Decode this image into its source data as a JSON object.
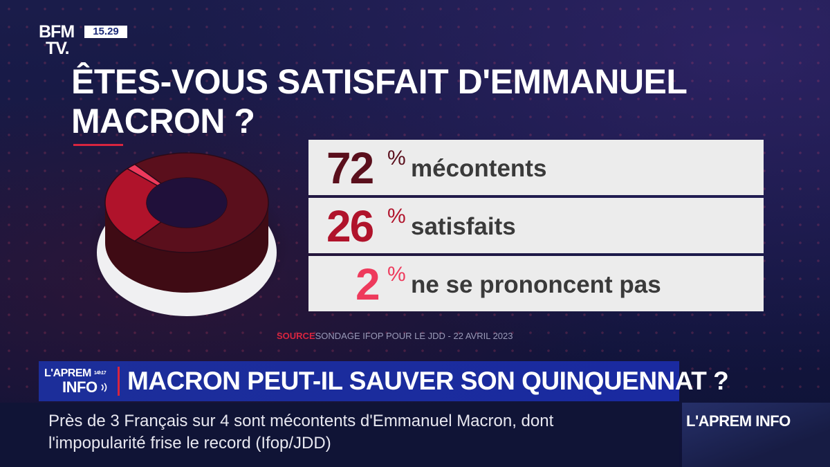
{
  "channel": {
    "logo_line1": "BFM",
    "logo_line2": "TV.",
    "clock": "15.29"
  },
  "chart_data": {
    "type": "pie",
    "title": "ÊTES-VOUS SATISFAIT D'EMMANUEL MACRON ?",
    "categories": [
      "mécontents",
      "satisfaits",
      "ne se prononcent pas"
    ],
    "values": [
      72,
      26,
      2
    ],
    "value_labels": [
      "72",
      "26",
      "2"
    ],
    "percent_sign": "%",
    "colors": [
      "#5a0f1c",
      "#b0132b",
      "#ee3a5c"
    ],
    "source_tag": "SOURCE",
    "source_text": "SONDAGE IFOP POUR LE JDD - 22 AVRIL 2023"
  },
  "lower_third": {
    "show_line1": "L'APREM",
    "show_hours": "14h17",
    "show_line2": "INFO",
    "headline": "MACRON PEUT-IL SAUVER SON QUINQUENNAT ?",
    "ticker_line1": "Près de 3 Français sur 4 sont mécontents d'Emmanuel Macron, dont",
    "ticker_line2": "l'impopularité frise le record   (Ifop/JDD)",
    "corner_label": "L'APREM INFO"
  }
}
